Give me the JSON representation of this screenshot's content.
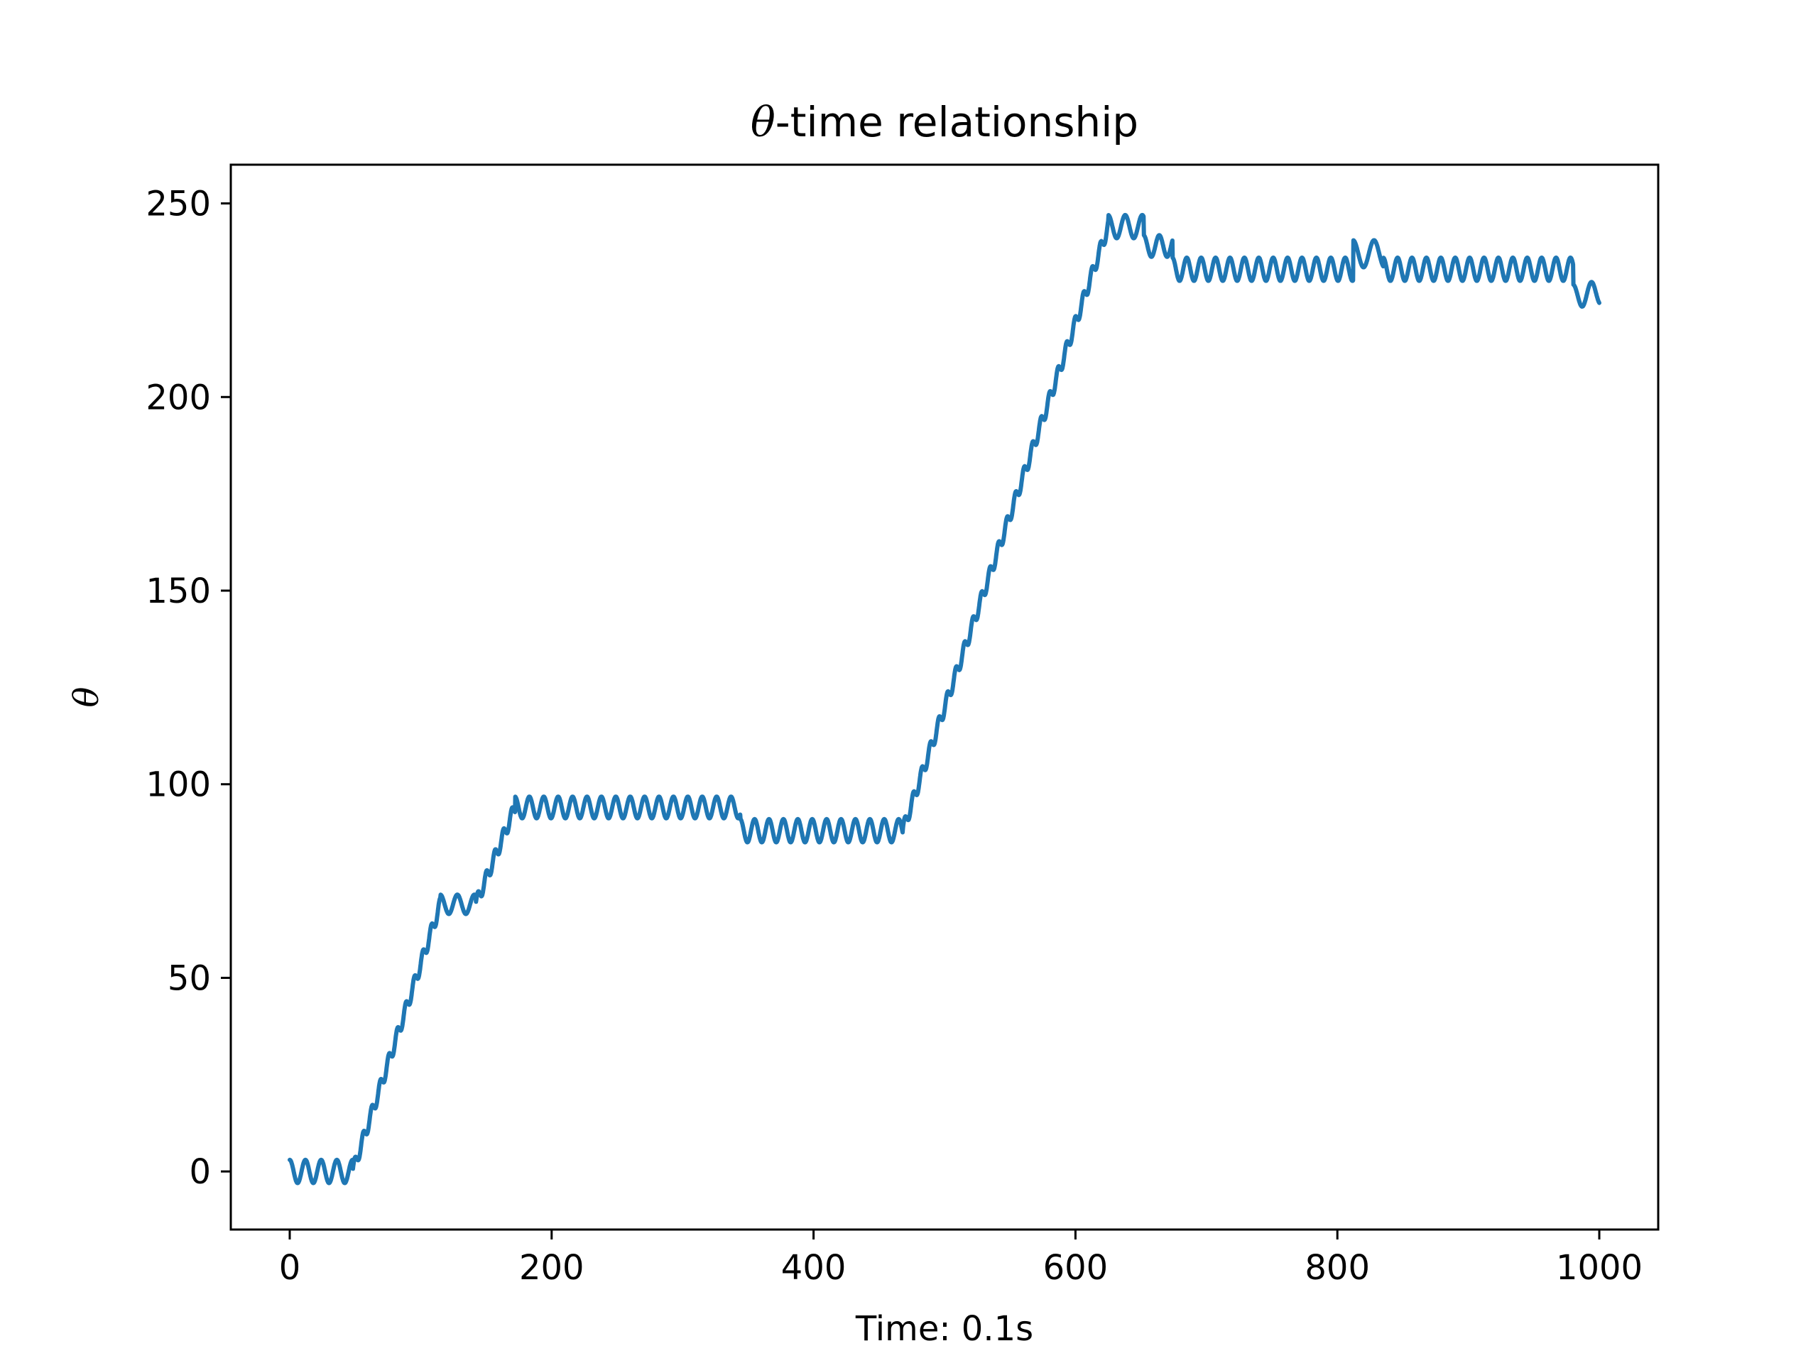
{
  "chart_data": {
    "type": "line",
    "title": "θ-time relationship",
    "title_symbol": "θ",
    "title_rest": "-time relationship",
    "xlabel": "Time: 0.1s",
    "ylabel": "θ",
    "xlim": [
      -45,
      1045
    ],
    "ylim": [
      -15,
      260
    ],
    "xticks": [
      0,
      200,
      400,
      600,
      800,
      1000
    ],
    "yticks": [
      0,
      50,
      100,
      150,
      200,
      250
    ],
    "grid": false,
    "line_color": "#1f77b4",
    "series": [
      {
        "segments": [
          {
            "x0": 0,
            "x1": 48,
            "y0": 0,
            "y1": 0,
            "wave_amp": 3,
            "wave_period": 12,
            "phase": 1.57
          },
          {
            "x0": 48,
            "x1": 115,
            "y0": 0,
            "y1": 69,
            "wave_amp": 1.8,
            "wave_period": 6.5,
            "phase": 0
          },
          {
            "x0": 115,
            "x1": 142,
            "y0": 69,
            "y1": 69,
            "wave_amp": 2.5,
            "wave_period": 13,
            "phase": 1.57
          },
          {
            "x0": 142,
            "x1": 172,
            "y0": 69,
            "y1": 94,
            "wave_amp": 1.8,
            "wave_period": 6.5,
            "phase": 0
          },
          {
            "x0": 172,
            "x1": 344,
            "y0": 94,
            "y1": 94,
            "wave_amp": 2.8,
            "wave_period": 11,
            "phase": 1.57
          },
          {
            "x0": 344,
            "x1": 468,
            "y0": 88,
            "y1": 88,
            "wave_amp": 3,
            "wave_period": 11,
            "phase": 1.57
          },
          {
            "x0": 468,
            "x1": 625,
            "y0": 88,
            "y1": 244,
            "wave_amp": 1.8,
            "wave_period": 6.5,
            "phase": 0
          },
          {
            "x0": 625,
            "x1": 652,
            "y0": 244,
            "y1": 244,
            "wave_amp": 3,
            "wave_period": 13,
            "phase": 1.57
          },
          {
            "x0": 652,
            "x1": 674,
            "y0": 239,
            "y1": 239,
            "wave_amp": 2.8,
            "wave_period": 12,
            "phase": 1.57
          },
          {
            "x0": 674,
            "x1": 812,
            "y0": 233,
            "y1": 233,
            "wave_amp": 3,
            "wave_period": 11,
            "phase": 1.57
          },
          {
            "x0": 812,
            "x1": 835,
            "y0": 237,
            "y1": 237,
            "wave_amp": 3.5,
            "wave_period": 16,
            "phase": 1.57
          },
          {
            "x0": 835,
            "x1": 980,
            "y0": 233,
            "y1": 233,
            "wave_amp": 3,
            "wave_period": 11,
            "phase": 1.57
          },
          {
            "x0": 980,
            "x1": 1000,
            "y0": 226,
            "y1": 227,
            "wave_amp": 3,
            "wave_period": 14,
            "phase": 1.57
          }
        ]
      }
    ]
  }
}
